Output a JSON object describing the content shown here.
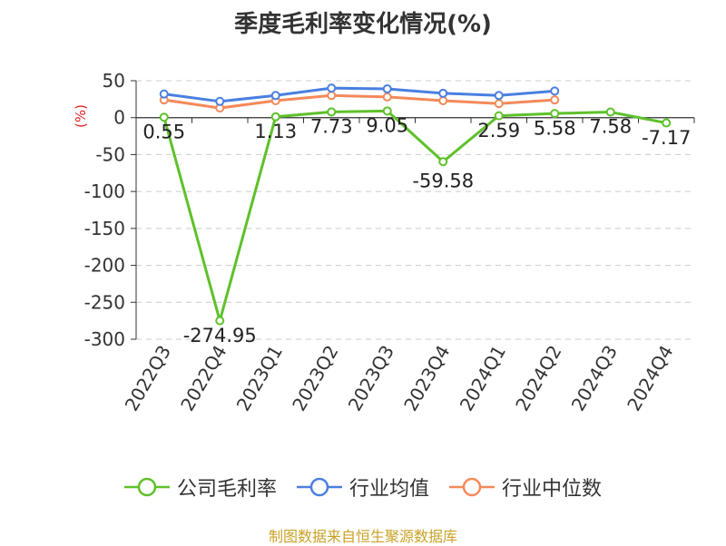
{
  "chart_data": {
    "type": "line",
    "title": "季度毛利率变化情况(%)",
    "ylabel": "(%)",
    "xlabel": "",
    "ylim": [
      -300,
      50
    ],
    "yticks": [
      50,
      0,
      -50,
      -100,
      -150,
      -200,
      -250,
      -300
    ],
    "categories": [
      "2022Q3",
      "2022Q4",
      "2023Q1",
      "2023Q2",
      "2023Q3",
      "2023Q4",
      "2024Q1",
      "2024Q2",
      "2024Q3",
      "2024Q4"
    ],
    "grid": true,
    "legend_position": "bottom",
    "series": [
      {
        "name": "公司毛利率",
        "color": "#5ec12a",
        "values": [
          0.55,
          -274.95,
          1.13,
          7.73,
          9.05,
          -59.58,
          2.59,
          5.58,
          7.58,
          -7.17
        ],
        "labels": [
          "0.55",
          "-274.95",
          "1.13",
          "7.73",
          "9.05",
          "-59.58",
          "2.59",
          "5.58",
          "7.58",
          "-7.17"
        ]
      },
      {
        "name": "行业均值",
        "color": "#4a7fe0",
        "values": [
          32,
          22,
          30,
          40,
          39,
          33,
          30,
          36,
          null,
          null
        ]
      },
      {
        "name": "行业中位数",
        "color": "#f4895a",
        "values": [
          24,
          13,
          23,
          30,
          28,
          23,
          19,
          24,
          null,
          null
        ]
      }
    ]
  },
  "source": "制图数据来自恒生聚源数据库"
}
